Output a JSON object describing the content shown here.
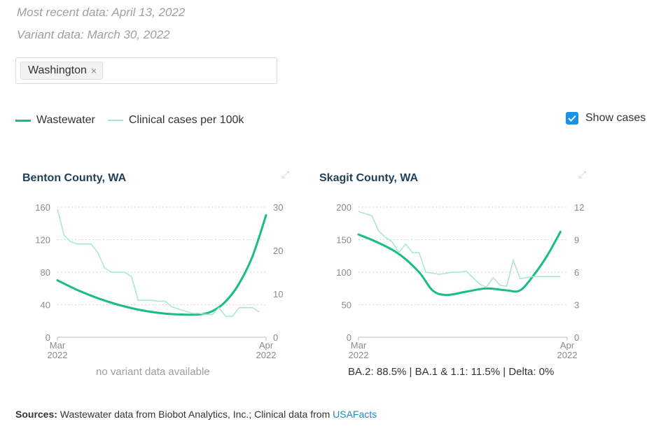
{
  "header": {
    "recent_data": "Most recent data: April 13, 2022",
    "variant_data": "Variant data: March 30, 2022"
  },
  "state_filter": {
    "selected": "Washington",
    "remove_glyph": "×"
  },
  "legend": {
    "wastewater_label": "Wastewater",
    "cases_label": "Clinical cases per 100k",
    "wastewater_color": "#18bc85",
    "cases_color": "#a6e6cf"
  },
  "show_cases": {
    "label": "Show cases",
    "checked": true
  },
  "charts": [
    {
      "title": "Benton County, WA",
      "left_ticks": [
        "160",
        "120",
        "80",
        "40",
        "0"
      ],
      "right_ticks": [
        "30",
        "20",
        "10",
        "0"
      ],
      "x_ticks": [
        {
          "month": "Mar",
          "year": "2022"
        },
        {
          "month": "Apr",
          "year": "2022"
        }
      ],
      "note": "no variant data available"
    },
    {
      "title": "Skagit County, WA",
      "left_ticks": [
        "200",
        "150",
        "100",
        "50",
        "0"
      ],
      "right_ticks": [
        "12",
        "9",
        "6",
        "3",
        "0"
      ],
      "x_ticks": [
        {
          "month": "Mar",
          "year": "2022"
        },
        {
          "month": "Apr",
          "year": "2022"
        }
      ],
      "note": "BA.2: 88.5% | BA.1 & 1.1: 11.5% | Delta: 0%"
    }
  ],
  "chart_data": [
    {
      "type": "line",
      "title": "Benton County, WA",
      "x_range": [
        "2022-03-01",
        "2022-04-01"
      ],
      "ylim_left": [
        0,
        160
      ],
      "ylim_right": [
        0,
        30
      ],
      "series": [
        {
          "name": "Wastewater",
          "axis": "left",
          "x": [
            "2022-03-01",
            "2022-03-04",
            "2022-03-07",
            "2022-03-10",
            "2022-03-13",
            "2022-03-16",
            "2022-03-19",
            "2022-03-22",
            "2022-03-24",
            "2022-03-26",
            "2022-03-28",
            "2022-03-30",
            "2022-04-01"
          ],
          "y": [
            70,
            58,
            48,
            40,
            34,
            30,
            28,
            28,
            32,
            44,
            66,
            100,
            150
          ]
        },
        {
          "name": "Clinical cases per 100k",
          "axis": "right",
          "x": [
            "2022-03-01",
            "2022-03-02",
            "2022-03-03",
            "2022-03-04",
            "2022-03-05",
            "2022-03-06",
            "2022-03-07",
            "2022-03-08",
            "2022-03-09",
            "2022-03-10",
            "2022-03-11",
            "2022-03-12",
            "2022-03-13",
            "2022-03-14",
            "2022-03-15",
            "2022-03-16",
            "2022-03-17",
            "2022-03-18",
            "2022-03-19",
            "2022-03-20",
            "2022-03-21",
            "2022-03-22",
            "2022-03-23",
            "2022-03-24",
            "2022-03-25",
            "2022-03-26",
            "2022-03-27",
            "2022-03-28",
            "2022-03-29",
            "2022-03-30",
            "2022-03-31"
          ],
          "y": [
            29.5,
            23.5,
            22,
            21.5,
            21.5,
            21.5,
            19.5,
            16,
            15,
            15,
            15,
            14,
            8.5,
            8.5,
            8.5,
            8.3,
            8.3,
            7,
            6.5,
            6,
            5.5,
            5.5,
            5.3,
            5.2,
            6.8,
            4.8,
            4.8,
            6.8,
            6.8,
            6.8,
            5.8
          ]
        }
      ]
    },
    {
      "type": "line",
      "title": "Skagit County, WA",
      "x_range": [
        "2022-03-01",
        "2022-04-01"
      ],
      "ylim_left": [
        0,
        200
      ],
      "ylim_right": [
        0,
        12
      ],
      "series": [
        {
          "name": "Wastewater",
          "axis": "left",
          "x": [
            "2022-03-01",
            "2022-03-04",
            "2022-03-07",
            "2022-03-10",
            "2022-03-12",
            "2022-03-14",
            "2022-03-17",
            "2022-03-20",
            "2022-03-23",
            "2022-03-25",
            "2022-03-27",
            "2022-03-29",
            "2022-03-31"
          ],
          "y": [
            158,
            145,
            128,
            100,
            72,
            65,
            70,
            75,
            72,
            72,
            95,
            125,
            162
          ]
        },
        {
          "name": "Clinical cases per 100k",
          "axis": "right",
          "x": [
            "2022-03-01",
            "2022-03-02",
            "2022-03-03",
            "2022-03-04",
            "2022-03-05",
            "2022-03-06",
            "2022-03-07",
            "2022-03-08",
            "2022-03-09",
            "2022-03-10",
            "2022-03-11",
            "2022-03-12",
            "2022-03-13",
            "2022-03-14",
            "2022-03-15",
            "2022-03-16",
            "2022-03-17",
            "2022-03-18",
            "2022-03-19",
            "2022-03-20",
            "2022-03-21",
            "2022-03-22",
            "2022-03-23",
            "2022-03-24",
            "2022-03-25",
            "2022-03-26",
            "2022-03-27",
            "2022-03-28",
            "2022-03-29",
            "2022-03-30",
            "2022-03-31"
          ],
          "y": [
            11.6,
            11.4,
            11.2,
            9.8,
            9.2,
            8.8,
            7.8,
            8.6,
            7.8,
            7.8,
            6.0,
            5.9,
            5.8,
            5.9,
            6.0,
            6.0,
            6.1,
            5.5,
            4.9,
            4.6,
            5.5,
            4.8,
            4.7,
            7.1,
            5.4,
            5.5,
            5.6,
            5.6,
            5.6,
            5.6,
            5.6
          ]
        }
      ]
    }
  ],
  "sources": {
    "label": "Sources:",
    "text": " Wastewater data from Biobot Analytics, Inc.; Clinical data from ",
    "link": "USAFacts"
  }
}
